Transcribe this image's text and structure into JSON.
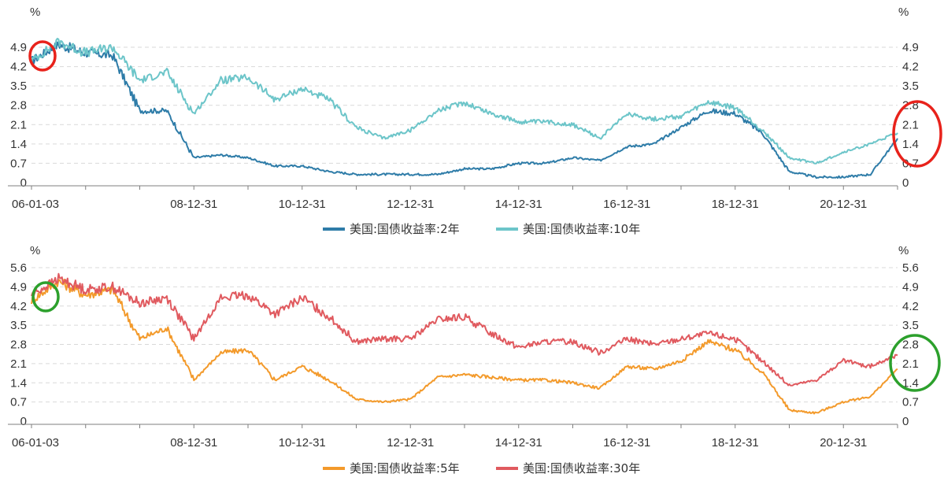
{
  "chart_data": [
    {
      "type": "line",
      "unit_left": "%",
      "unit_right": "%",
      "x_tick_labels": [
        "06-01-03",
        "08-12-31",
        "10-12-31",
        "12-12-31",
        "14-12-31",
        "16-12-31",
        "18-12-31",
        "20-12-31"
      ],
      "y_ticks": [
        "0",
        "0.7",
        "1.4",
        "2.1",
        "2.8",
        "3.5",
        "4.2",
        "4.9"
      ],
      "ylim": [
        0,
        5.3
      ],
      "x": [
        2006.0,
        2006.5,
        2007.0,
        2007.5,
        2008.0,
        2008.5,
        2009.0,
        2009.5,
        2010.0,
        2010.5,
        2011.0,
        2011.5,
        2012.0,
        2012.5,
        2013.0,
        2013.5,
        2014.0,
        2014.5,
        2015.0,
        2015.5,
        2016.0,
        2016.5,
        2017.0,
        2017.5,
        2018.0,
        2018.5,
        2019.0,
        2019.5,
        2020.0,
        2020.5,
        2021.0,
        2021.5,
        2022.0
      ],
      "series": [
        {
          "name": "美国:国债收益率:2年",
          "color": "#2e7ca8",
          "values": [
            4.4,
            5.0,
            4.7,
            4.6,
            2.6,
            2.6,
            0.9,
            1.0,
            0.9,
            0.6,
            0.6,
            0.4,
            0.3,
            0.3,
            0.3,
            0.3,
            0.5,
            0.5,
            0.7,
            0.7,
            0.9,
            0.8,
            1.3,
            1.4,
            2.0,
            2.6,
            2.5,
            1.8,
            0.4,
            0.2,
            0.2,
            0.3,
            1.6
          ]
        },
        {
          "name": "美国:国债收益率:10年",
          "color": "#6cc5c9",
          "values": [
            4.4,
            5.1,
            4.7,
            4.9,
            3.7,
            4.0,
            2.5,
            3.7,
            3.8,
            3.0,
            3.4,
            3.0,
            2.0,
            1.6,
            1.9,
            2.6,
            2.9,
            2.5,
            2.2,
            2.2,
            2.1,
            1.6,
            2.5,
            2.3,
            2.4,
            2.9,
            2.7,
            1.9,
            0.9,
            0.7,
            1.1,
            1.4,
            1.8
          ]
        }
      ]
    },
    {
      "type": "line",
      "unit_left": "%",
      "unit_right": "%",
      "x_tick_labels": [
        "06-01-03",
        "08-12-31",
        "10-12-31",
        "12-12-31",
        "14-12-31",
        "16-12-31",
        "18-12-31",
        "20-12-31"
      ],
      "y_ticks": [
        "0",
        "0.7",
        "1.4",
        "2.1",
        "2.8",
        "3.5",
        "4.2",
        "4.9",
        "5.6"
      ],
      "ylim": [
        0,
        5.6
      ],
      "x": [
        2006.0,
        2006.5,
        2007.0,
        2007.5,
        2008.0,
        2008.5,
        2009.0,
        2009.5,
        2010.0,
        2010.5,
        2011.0,
        2011.5,
        2012.0,
        2012.5,
        2013.0,
        2013.5,
        2014.0,
        2014.5,
        2015.0,
        2015.5,
        2016.0,
        2016.5,
        2017.0,
        2017.5,
        2018.0,
        2018.5,
        2019.0,
        2019.5,
        2020.0,
        2020.5,
        2021.0,
        2021.5,
        2022.0
      ],
      "series": [
        {
          "name": "美国:国债收益率:5年",
          "color": "#f39a2b",
          "values": [
            4.4,
            5.1,
            4.6,
            4.8,
            3.0,
            3.4,
            1.5,
            2.5,
            2.6,
            1.5,
            2.0,
            1.5,
            0.8,
            0.7,
            0.8,
            1.6,
            1.7,
            1.6,
            1.5,
            1.5,
            1.4,
            1.2,
            2.0,
            1.9,
            2.2,
            2.9,
            2.6,
            1.8,
            0.4,
            0.3,
            0.7,
            0.9,
            1.9
          ]
        },
        {
          "name": "美国:国债收益率:30年",
          "color": "#e05a5f",
          "values": [
            4.6,
            5.2,
            4.8,
            4.9,
            4.3,
            4.5,
            3.0,
            4.5,
            4.6,
            3.9,
            4.5,
            3.8,
            2.9,
            3.0,
            3.0,
            3.7,
            3.8,
            3.2,
            2.7,
            2.9,
            2.9,
            2.5,
            3.0,
            2.8,
            3.0,
            3.2,
            3.0,
            2.2,
            1.3,
            1.5,
            2.2,
            2.0,
            2.4
          ]
        }
      ]
    }
  ],
  "annotations": {
    "top_circle_color": "#e8221b",
    "bottom_circle_color": "#2ca02c"
  }
}
